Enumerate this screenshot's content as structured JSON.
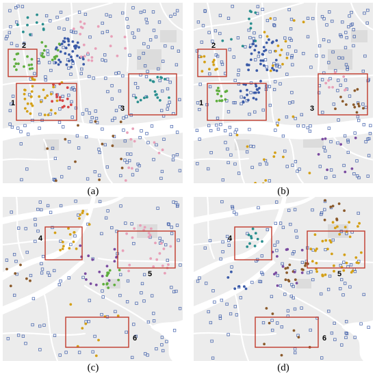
{
  "colors": {
    "background": "#ececec",
    "road": "#ffffff",
    "river": "#ffffff",
    "park": "#dcdcdc",
    "highlight_box": "#c0392b",
    "open_marker": "#3b5ba8"
  },
  "panels": [
    {
      "key": "a",
      "caption": "(a)",
      "highlights": [
        {
          "label": "2"
        },
        {
          "label": "1"
        },
        {
          "label": "3"
        }
      ]
    },
    {
      "key": "b",
      "caption": "(b)",
      "highlights": [
        {
          "label": "2"
        },
        {
          "label": "1"
        },
        {
          "label": "3"
        }
      ]
    },
    {
      "key": "c",
      "caption": "(c)",
      "highlights": [
        {
          "label": "4"
        },
        {
          "label": "5"
        },
        {
          "label": "6"
        }
      ]
    },
    {
      "key": "d",
      "caption": "(d)",
      "highlights": [
        {
          "label": "4"
        },
        {
          "label": "5"
        },
        {
          "label": "6"
        }
      ]
    }
  ],
  "point_colors": [
    "#3b5ba8",
    "#5fae3e",
    "#e8a0b8",
    "#d4a017",
    "#8b5a2b",
    "#2a8f8f",
    "#7a4ba0",
    "#d64545",
    "#b0b0b0",
    "#4a4a4a"
  ]
}
